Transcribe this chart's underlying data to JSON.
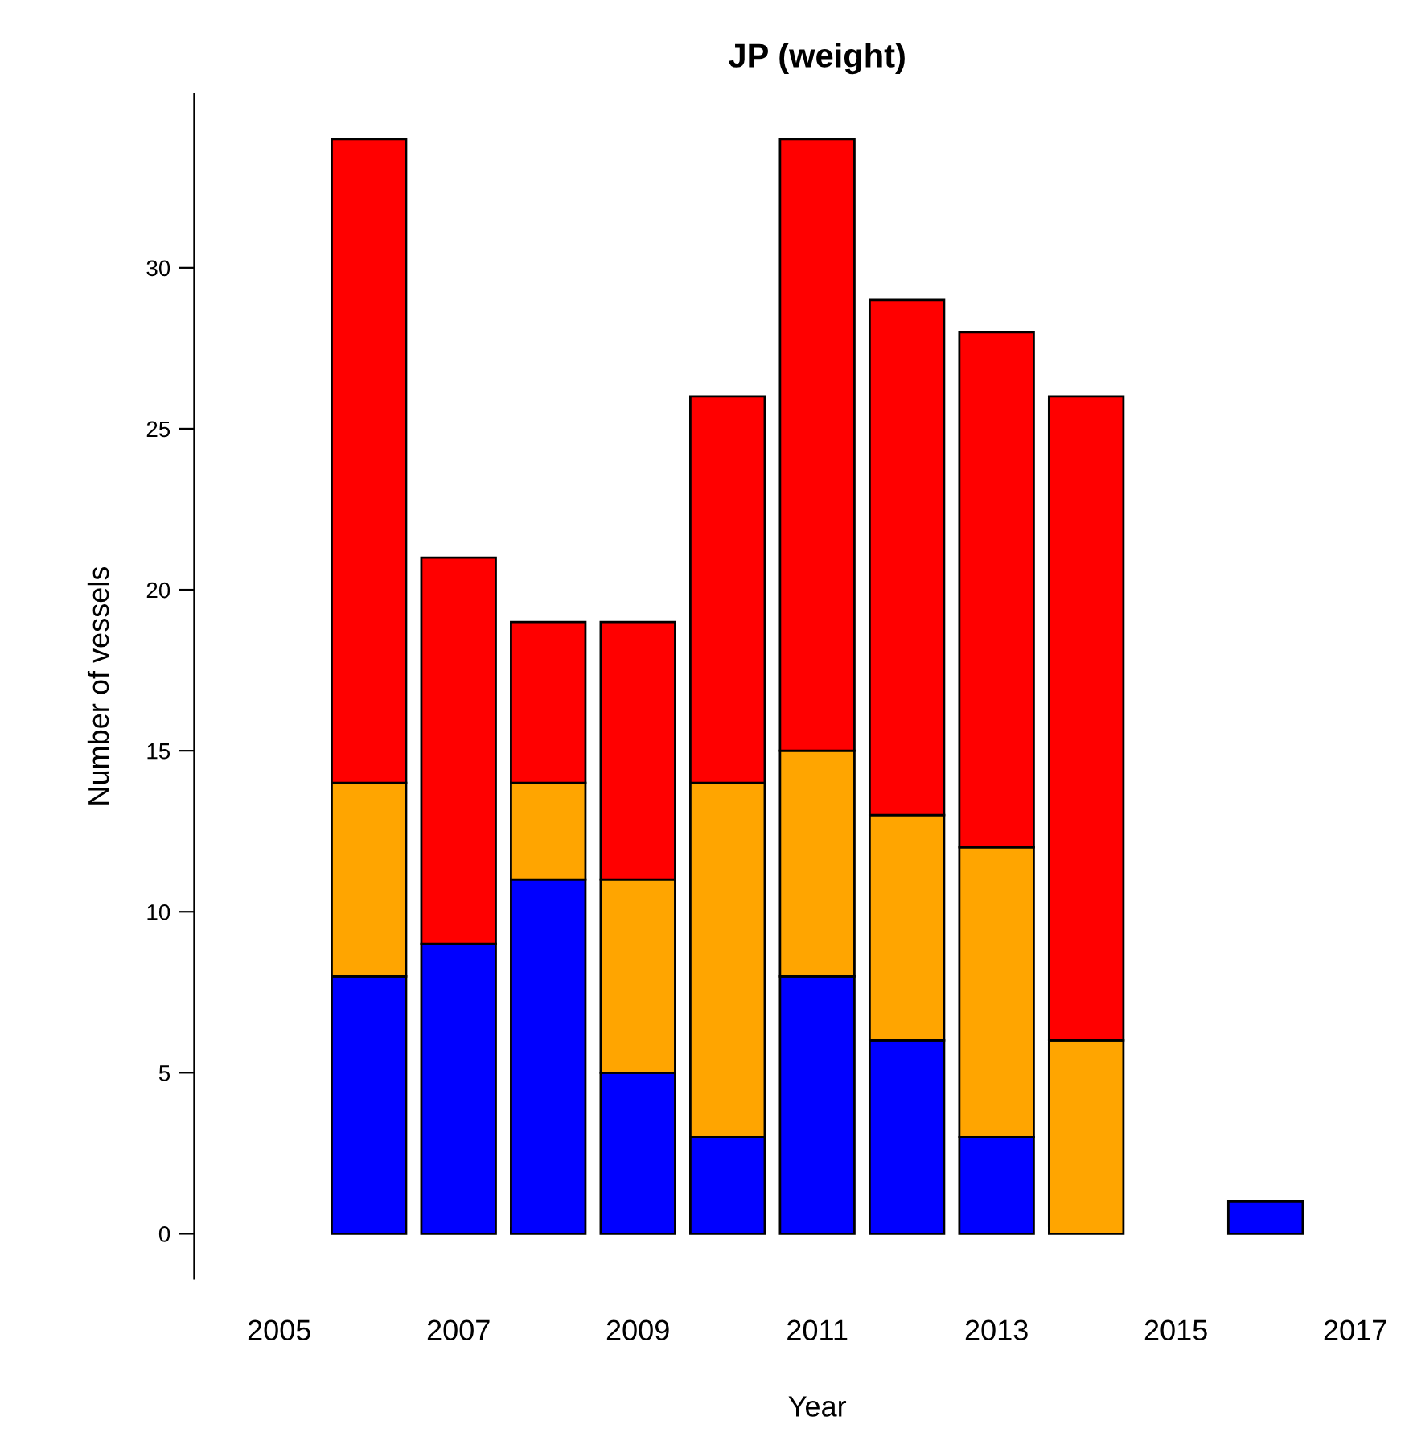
{
  "chart_data": {
    "type": "bar",
    "title": "JP (weight)",
    "xlabel": "Year",
    "ylabel": "Number of vessels",
    "categories": [
      "2005",
      null,
      "2007",
      null,
      "2009",
      null,
      "2011",
      null,
      "2013",
      null,
      "2015",
      null,
      "2017"
    ],
    "stacked": true,
    "ylim": [
      -1.4,
      35.4
    ],
    "yticks": [
      0,
      5,
      10,
      15,
      20,
      25,
      30
    ],
    "grid": false,
    "legend": false,
    "series": [
      {
        "color": "#0000ff",
        "values": [
          0,
          8,
          9,
          11,
          5,
          3,
          8,
          6,
          3,
          0,
          0,
          1,
          0
        ]
      },
      {
        "color": "#ffa500",
        "values": [
          0,
          6,
          0,
          3,
          6,
          11,
          7,
          7,
          9,
          6,
          0,
          0,
          0
        ]
      },
      {
        "color": "#ff0000",
        "values": [
          0,
          20,
          12,
          5,
          8,
          12,
          19,
          16,
          16,
          20,
          0,
          0,
          0
        ]
      }
    ]
  }
}
